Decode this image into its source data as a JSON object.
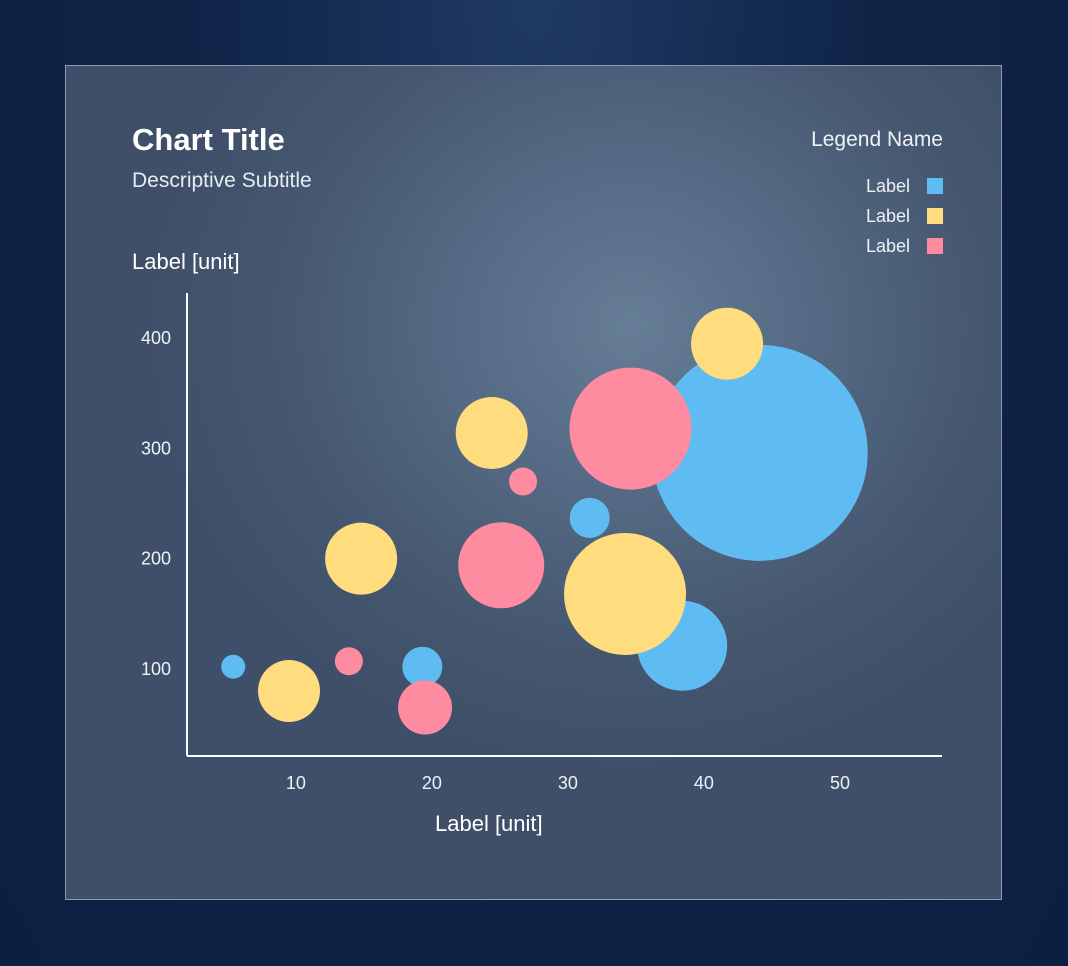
{
  "chart_data": {
    "type": "scatter",
    "variant": "bubble",
    "title": "Chart Title",
    "subtitle": "Descriptive Subtitle",
    "xlabel": "Label [unit]",
    "ylabel": "Label [unit]",
    "xlim": [
      2,
      57.5
    ],
    "ylim": [
      20,
      440
    ],
    "xticks": [
      10,
      20,
      30,
      40,
      50
    ],
    "yticks": [
      100,
      200,
      300,
      400
    ],
    "grid": false,
    "legend": {
      "title": "Legend Name",
      "position": "top-right"
    },
    "series": [
      {
        "label": "Label",
        "color": "#5fbcf3",
        "points": [
          {
            "x": 5.4,
            "y": 101,
            "size": 12
          },
          {
            "x": 19.3,
            "y": 101,
            "size": 20
          },
          {
            "x": 31.6,
            "y": 236,
            "size": 20
          },
          {
            "x": 38.4,
            "y": 120,
            "size": 45
          },
          {
            "x": 44.1,
            "y": 295,
            "size": 108
          }
        ]
      },
      {
        "label": "Label",
        "color": "#ffdc7e",
        "points": [
          {
            "x": 9.5,
            "y": 79,
            "size": 31
          },
          {
            "x": 14.8,
            "y": 199,
            "size": 36
          },
          {
            "x": 24.4,
            "y": 313,
            "size": 36
          },
          {
            "x": 34.2,
            "y": 167,
            "size": 61
          },
          {
            "x": 41.7,
            "y": 394,
            "size": 36
          }
        ]
      },
      {
        "label": "Label",
        "color": "#ff8ba0",
        "points": [
          {
            "x": 13.9,
            "y": 106,
            "size": 14
          },
          {
            "x": 19.5,
            "y": 64,
            "size": 27
          },
          {
            "x": 25.1,
            "y": 193,
            "size": 43
          },
          {
            "x": 26.7,
            "y": 269,
            "size": 14
          },
          {
            "x": 34.6,
            "y": 317,
            "size": 61
          }
        ]
      }
    ]
  }
}
